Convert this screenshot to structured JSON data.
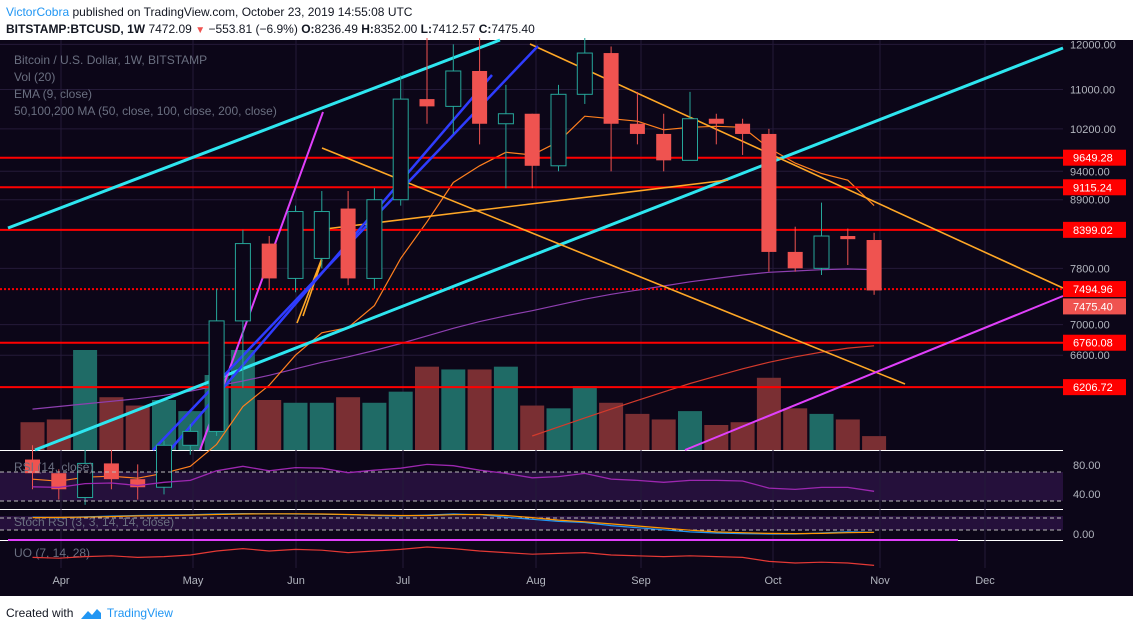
{
  "header": {
    "author": "VictorCobra",
    "published": "published on TradingView.com, October 23, 2019 14:55:08 UTC",
    "symbol": "BITSTAMP:BTCUSD, 1W",
    "price": "7472.09",
    "change": "−553.81 (−6.9%)",
    "o_label": "O:",
    "o_value": "8236.49",
    "h_label": "H:",
    "h_value": "8352.00",
    "l_label": "L:",
    "l_value": "7412.57",
    "c_label": "C:",
    "c_value": "7475.40"
  },
  "legend": {
    "title": "Bitcoin / U.S. Dollar, 1W, BITSTAMP",
    "vol": "Vol (20)",
    "ema": "EMA (9, close)",
    "ma": "50,100,200 MA (50, close, 100, close, 200, close)"
  },
  "footer": {
    "created_with": "Created with",
    "brand": "TradingView"
  },
  "colors": {
    "background": "#0c0618",
    "bull": "#26a69a",
    "bear": "#ef5350",
    "support": "#ff0000",
    "trend_cyan": "#2ee6f0",
    "trend_orange": "#ffa726",
    "trend_magenta": "#e040fb",
    "trend_blue": "#2f3cff",
    "author": "#2196f3"
  },
  "chart_data": {
    "type": "candlestick",
    "title": "Bitcoin / U.S. Dollar, 1W, BITSTAMP",
    "price_scale": "log",
    "ylim": [
      5500,
      12100
    ],
    "grid": true,
    "legend_position": "top-left",
    "y_ticks": [
      12000,
      11000,
      10200,
      9400,
      8900,
      7800,
      7000,
      6600
    ],
    "x_ticks": [
      "Apr",
      "May",
      "Jun",
      "Jul",
      "Aug",
      "Sep",
      "Oct",
      "Nov",
      "Dec"
    ],
    "candles": [
      {
        "o": 5400,
        "h": 5550,
        "l": 5100,
        "c": 5260,
        "v": 1.0
      },
      {
        "o": 5260,
        "h": 5300,
        "l": 5000,
        "c": 5100,
        "v": 1.1
      },
      {
        "o": 5020,
        "h": 5500,
        "l": 4950,
        "c": 5360,
        "v": 3.6
      },
      {
        "o": 5360,
        "h": 5500,
        "l": 5100,
        "c": 5200,
        "v": 1.9
      },
      {
        "o": 5200,
        "h": 5350,
        "l": 5000,
        "c": 5120,
        "v": 1.6
      },
      {
        "o": 5120,
        "h": 5600,
        "l": 5050,
        "c": 5550,
        "v": 1.8
      },
      {
        "o": 5550,
        "h": 5780,
        "l": 5450,
        "c": 5700,
        "v": 1.4
      },
      {
        "o": 5700,
        "h": 7500,
        "l": 5650,
        "c": 7050,
        "v": 2.7
      },
      {
        "o": 7050,
        "h": 8400,
        "l": 6200,
        "c": 8180,
        "v": 3.6
      },
      {
        "o": 8180,
        "h": 8300,
        "l": 7500,
        "c": 7650,
        "v": 1.8
      },
      {
        "o": 7650,
        "h": 8800,
        "l": 7450,
        "c": 8700,
        "v": 1.7
      },
      {
        "o": 7950,
        "h": 9050,
        "l": 7800,
        "c": 8700,
        "v": 1.7
      },
      {
        "o": 8750,
        "h": 9050,
        "l": 7550,
        "c": 7650,
        "v": 1.9
      },
      {
        "o": 7650,
        "h": 9100,
        "l": 7500,
        "c": 8900,
        "v": 1.7
      },
      {
        "o": 8900,
        "h": 11300,
        "l": 8800,
        "c": 10800,
        "v": 2.1
      },
      {
        "o": 10800,
        "h": 13800,
        "l": 10300,
        "c": 10650,
        "v": 3.0
      },
      {
        "o": 10650,
        "h": 12000,
        "l": 10100,
        "c": 11400,
        "v": 2.9
      },
      {
        "o": 11400,
        "h": 13200,
        "l": 9900,
        "c": 10300,
        "v": 2.9
      },
      {
        "o": 10300,
        "h": 11100,
        "l": 9100,
        "c": 10500,
        "v": 3.0
      },
      {
        "o": 10500,
        "h": 10500,
        "l": 9100,
        "c": 9500,
        "v": 1.6
      },
      {
        "o": 9500,
        "h": 11100,
        "l": 9400,
        "c": 10900,
        "v": 1.5
      },
      {
        "o": 10900,
        "h": 12300,
        "l": 10700,
        "c": 11800,
        "v": 2.3
      },
      {
        "o": 11800,
        "h": 11950,
        "l": 9400,
        "c": 10300,
        "v": 1.7
      },
      {
        "o": 10300,
        "h": 10950,
        "l": 9900,
        "c": 10100,
        "v": 1.3
      },
      {
        "o": 10100,
        "h": 10500,
        "l": 9400,
        "c": 9600,
        "v": 1.1
      },
      {
        "o": 9600,
        "h": 10950,
        "l": 9600,
        "c": 10400,
        "v": 1.4
      },
      {
        "o": 10400,
        "h": 10500,
        "l": 9900,
        "c": 10300,
        "v": 0.9
      },
      {
        "o": 10300,
        "h": 10400,
        "l": 9700,
        "c": 10100,
        "v": 1.0
      },
      {
        "o": 10100,
        "h": 10200,
        "l": 7750,
        "c": 8050,
        "v": 2.6
      },
      {
        "o": 8050,
        "h": 8450,
        "l": 7750,
        "c": 7800,
        "v": 1.5
      },
      {
        "o": 7800,
        "h": 8850,
        "l": 7700,
        "c": 8300,
        "v": 1.3
      },
      {
        "o": 8300,
        "h": 8420,
        "l": 7850,
        "c": 8250,
        "v": 1.1
      },
      {
        "o": 8236.49,
        "h": 8352.0,
        "l": 7412.57,
        "c": 7475.4,
        "v": 0.5
      }
    ],
    "ema9": [
      5200,
      5180,
      5220,
      5230,
      5210,
      5260,
      5330,
      5560,
      5980,
      6230,
      6600,
      6890,
      6960,
      7260,
      7950,
      8530,
      9200,
      9500,
      9750,
      9700,
      9950,
      10450,
      10400,
      10350,
      10180,
      10230,
      10250,
      10230,
      9830,
      9550,
      9360,
      9240,
      8800
    ],
    "ma50": [
      5950,
      5980,
      6010,
      6040,
      6070,
      6110,
      6160,
      6220,
      6280,
      6350,
      6430,
      6510,
      6580,
      6660,
      6750,
      6850,
      6950,
      7040,
      7120,
      7190,
      7270,
      7350,
      7420,
      7480,
      7540,
      7600,
      7650,
      7700,
      7740,
      7760,
      7780,
      7790,
      7780
    ],
    "ma100": [
      null,
      null,
      null,
      null,
      null,
      null,
      null,
      null,
      null,
      null,
      null,
      null,
      null,
      null,
      null,
      null,
      null,
      null,
      null,
      5650,
      5750,
      5850,
      5950,
      6050,
      6150,
      6250,
      6340,
      6430,
      6510,
      6580,
      6640,
      6690,
      6720
    ],
    "horizontal_levels": [
      {
        "price": 9649.28,
        "label": "9649.28"
      },
      {
        "price": 9115.24,
        "label": "9115.24"
      },
      {
        "price": 8399.02,
        "label": "8399.02"
      },
      {
        "price": 7494.96,
        "label": "7494.96"
      },
      {
        "price": 6760.08,
        "label": "6760.08"
      },
      {
        "price": 6206.72,
        "label": "6206.72"
      }
    ],
    "last_price_label": "7475.40",
    "rsi": {
      "title": "RSI (14, close)",
      "ylim": [
        20,
        95
      ],
      "ticks": [
        80,
        40
      ],
      "bands": [
        70,
        30
      ],
      "values": [
        50,
        49,
        55,
        56,
        52,
        57,
        60,
        75,
        82,
        75,
        80,
        79,
        72,
        76,
        79,
        85,
        83,
        76,
        71,
        64,
        66,
        71,
        62,
        60,
        57,
        60,
        60,
        59,
        48,
        46,
        49,
        49,
        43
      ]
    },
    "stoch_rsi": {
      "title": "Stoch RSI (3, 3, 14, 14, close)",
      "ticks": [
        "0.00"
      ],
      "k": [
        80,
        78,
        82,
        85,
        88,
        90,
        92,
        95,
        97,
        96,
        95,
        94,
        92,
        88,
        86,
        90,
        95,
        92,
        80,
        70,
        60,
        55,
        40,
        30,
        20,
        10,
        5,
        2,
        0,
        0,
        5,
        10,
        8
      ],
      "d": [
        78,
        79,
        80,
        83,
        86,
        88,
        90,
        93,
        95,
        96,
        96,
        95,
        93,
        90,
        88,
        88,
        92,
        93,
        88,
        78,
        66,
        58,
        48,
        38,
        28,
        18,
        10,
        6,
        3,
        2,
        3,
        6,
        8
      ]
    },
    "uo": {
      "title": "UO (7, 14, 28)",
      "values": [
        52,
        51,
        53,
        54,
        52,
        53,
        55,
        60,
        63,
        60,
        62,
        61,
        58,
        60,
        62,
        65,
        63,
        60,
        58,
        56,
        57,
        58,
        55,
        54,
        53,
        54,
        53,
        52,
        47,
        45,
        46,
        45,
        42
      ]
    }
  }
}
